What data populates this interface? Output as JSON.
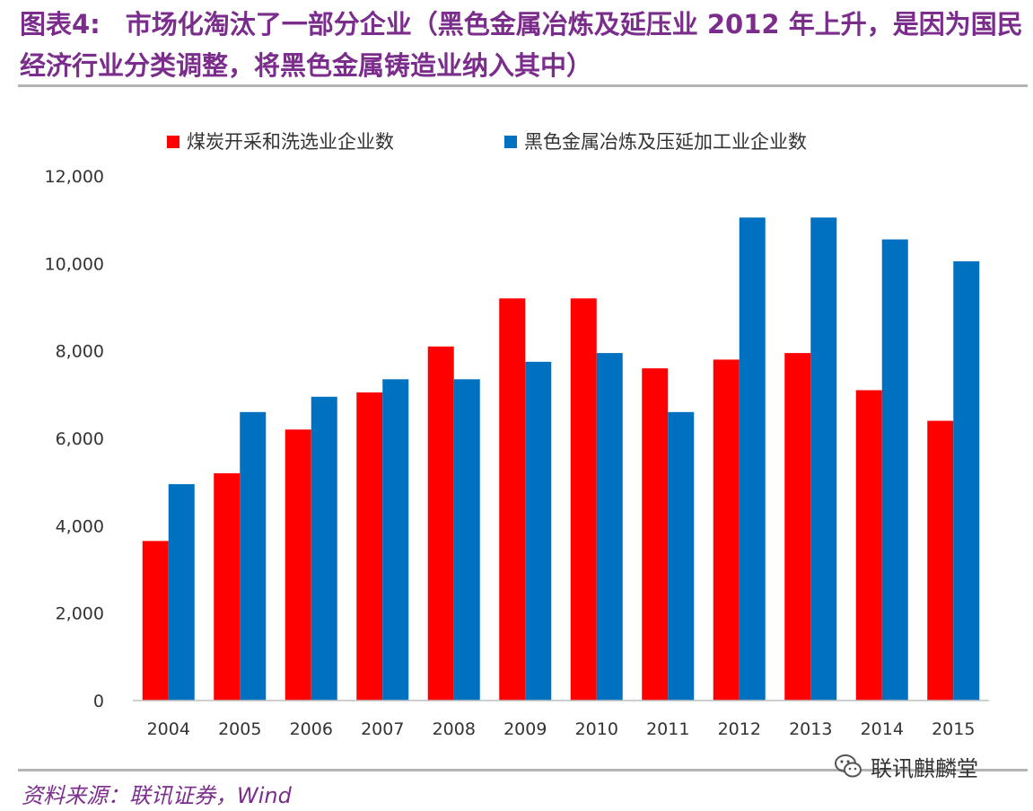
{
  "title": {
    "label": "图表4:",
    "text": "市场化淘汰了一部分企业（黑色金属冶炼及延压业 2012 年上升，是因为国民经济行业分类调整，将黑色金属铸造业纳入其中）"
  },
  "source": "资料来源：联讯证券，Wind",
  "watermark": {
    "text": "联讯麒麟堂",
    "icon": "wechat-icon"
  },
  "colors": {
    "series1": "#ff0000",
    "series2": "#0070c0",
    "title": "#7b2d8b",
    "axis_text": "#333333"
  },
  "chart_data": {
    "type": "bar",
    "categories": [
      "2004",
      "2005",
      "2006",
      "2007",
      "2008",
      "2009",
      "2010",
      "2011",
      "2012",
      "2013",
      "2014",
      "2015"
    ],
    "series": [
      {
        "name": "煤炭开采和洗选业企业数",
        "values": [
          3650,
          5200,
          6200,
          7050,
          8100,
          9200,
          9200,
          7600,
          7800,
          7950,
          7100,
          6400
        ]
      },
      {
        "name": "黑色金属冶炼及压延加工业企业数",
        "values": [
          4950,
          6600,
          6950,
          7350,
          7350,
          7750,
          7950,
          6600,
          11050,
          11050,
          10550,
          10050
        ]
      }
    ],
    "ylim": [
      0,
      12000
    ],
    "yticks": [
      0,
      2000,
      4000,
      6000,
      8000,
      10000,
      12000
    ],
    "ytick_labels": [
      "0",
      "2,000",
      "4,000",
      "6,000",
      "8,000",
      "10,000",
      "12,000"
    ],
    "legend": "top",
    "grid": false,
    "xlabel": "",
    "ylabel": ""
  }
}
